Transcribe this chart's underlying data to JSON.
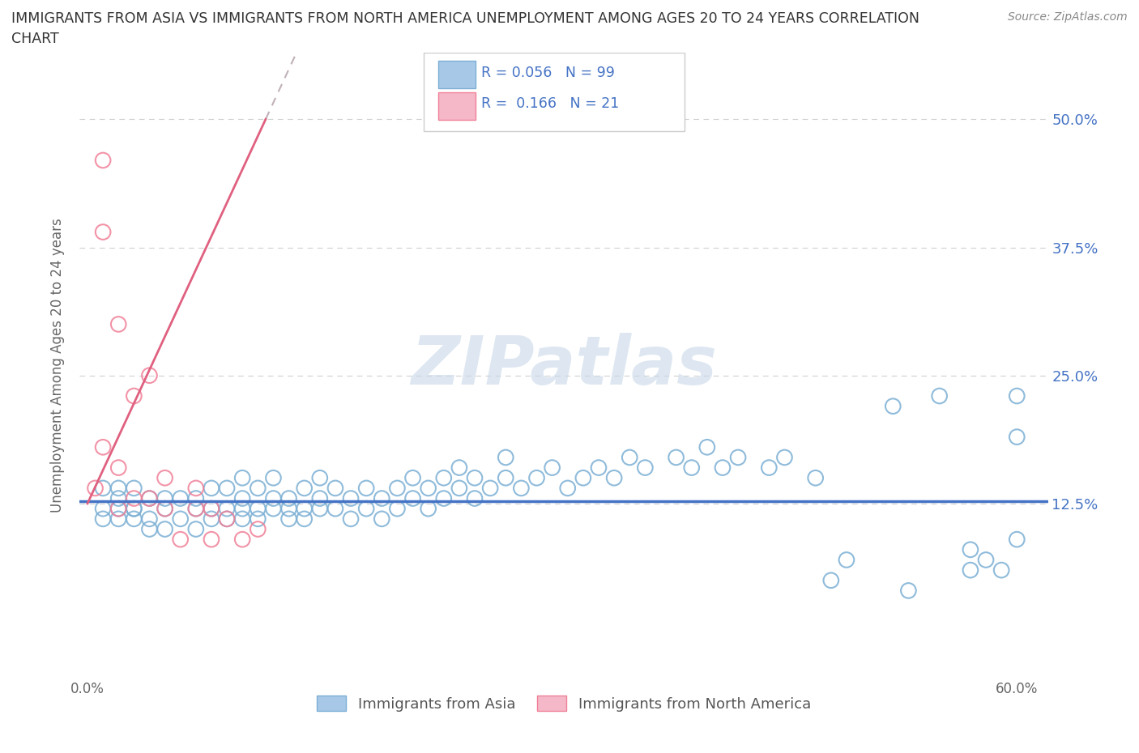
{
  "title_line1": "IMMIGRANTS FROM ASIA VS IMMIGRANTS FROM NORTH AMERICA UNEMPLOYMENT AMONG AGES 20 TO 24 YEARS CORRELATION",
  "title_line2": "CHART",
  "source": "Source: ZipAtlas.com",
  "ylabel": "Unemployment Among Ages 20 to 24 years",
  "legend_label1": "Immigrants from Asia",
  "legend_label2": "Immigrants from North America",
  "R1": 0.056,
  "N1": 99,
  "R2": 0.166,
  "N2": 21,
  "color_asia_fill": "none",
  "color_asia_edge": "#7bafd4",
  "color_na_fill": "none",
  "color_na_edge": "#f08098",
  "color_line_asia": "#4472c4",
  "color_line_na": "#e06080",
  "color_dashed": "#c0b0b8",
  "color_text_blue": "#4472c4",
  "color_grid": "#d0d0d0",
  "watermark_color": "#c8d8e8",
  "asia_x": [
    0.01,
    0.01,
    0.01,
    0.02,
    0.02,
    0.02,
    0.02,
    0.03,
    0.03,
    0.03,
    0.03,
    0.04,
    0.04,
    0.04,
    0.05,
    0.05,
    0.05,
    0.06,
    0.06,
    0.07,
    0.07,
    0.07,
    0.08,
    0.08,
    0.08,
    0.09,
    0.09,
    0.09,
    0.1,
    0.1,
    0.1,
    0.1,
    0.11,
    0.11,
    0.11,
    0.12,
    0.12,
    0.12,
    0.13,
    0.13,
    0.13,
    0.14,
    0.14,
    0.14,
    0.15,
    0.15,
    0.15,
    0.16,
    0.16,
    0.17,
    0.17,
    0.18,
    0.18,
    0.19,
    0.19,
    0.2,
    0.2,
    0.21,
    0.21,
    0.22,
    0.22,
    0.23,
    0.23,
    0.24,
    0.24,
    0.25,
    0.25,
    0.26,
    0.27,
    0.27,
    0.28,
    0.29,
    0.3,
    0.31,
    0.32,
    0.33,
    0.34,
    0.35,
    0.36,
    0.38,
    0.39,
    0.4,
    0.41,
    0.42,
    0.44,
    0.45,
    0.47,
    0.49,
    0.52,
    0.55,
    0.57,
    0.58,
    0.59,
    0.6,
    0.6,
    0.6,
    0.57,
    0.53,
    0.48
  ],
  "asia_y": [
    0.14,
    0.12,
    0.11,
    0.13,
    0.12,
    0.11,
    0.14,
    0.12,
    0.11,
    0.14,
    0.12,
    0.11,
    0.1,
    0.13,
    0.12,
    0.1,
    0.13,
    0.11,
    0.13,
    0.12,
    0.1,
    0.13,
    0.11,
    0.12,
    0.14,
    0.11,
    0.12,
    0.14,
    0.12,
    0.13,
    0.15,
    0.11,
    0.12,
    0.14,
    0.11,
    0.12,
    0.13,
    0.15,
    0.11,
    0.13,
    0.12,
    0.12,
    0.14,
    0.11,
    0.12,
    0.13,
    0.15,
    0.12,
    0.14,
    0.11,
    0.13,
    0.12,
    0.14,
    0.11,
    0.13,
    0.12,
    0.14,
    0.13,
    0.15,
    0.12,
    0.14,
    0.13,
    0.15,
    0.14,
    0.16,
    0.13,
    0.15,
    0.14,
    0.15,
    0.17,
    0.14,
    0.15,
    0.16,
    0.14,
    0.15,
    0.16,
    0.15,
    0.17,
    0.16,
    0.17,
    0.16,
    0.18,
    0.16,
    0.17,
    0.16,
    0.17,
    0.15,
    0.07,
    0.22,
    0.23,
    0.06,
    0.07,
    0.06,
    0.23,
    0.19,
    0.09,
    0.08,
    0.04,
    0.05
  ],
  "na_x": [
    0.005,
    0.01,
    0.01,
    0.01,
    0.02,
    0.02,
    0.02,
    0.03,
    0.03,
    0.04,
    0.04,
    0.05,
    0.05,
    0.06,
    0.07,
    0.07,
    0.08,
    0.08,
    0.09,
    0.1,
    0.11
  ],
  "na_y": [
    0.14,
    0.46,
    0.39,
    0.18,
    0.3,
    0.16,
    0.12,
    0.23,
    0.13,
    0.25,
    0.13,
    0.15,
    0.12,
    0.09,
    0.14,
    0.12,
    0.09,
    0.12,
    0.11,
    0.09,
    0.1
  ],
  "na_line_x0": 0.0,
  "na_line_y0": 0.125,
  "na_line_x1": 0.115,
  "na_line_y1": 0.5,
  "asia_line_y": 0.127,
  "xlim": [
    -0.005,
    0.62
  ],
  "ylim": [
    -0.045,
    0.565
  ],
  "xtick_show": [
    0.0,
    0.6
  ],
  "xtick_labels": [
    "0.0%",
    "60.0%"
  ],
  "ytick_right": [
    0.125,
    0.25,
    0.375,
    0.5
  ],
  "ytick_right_labels": [
    "12.5%",
    "25.0%",
    "37.5%",
    "50.0%"
  ]
}
